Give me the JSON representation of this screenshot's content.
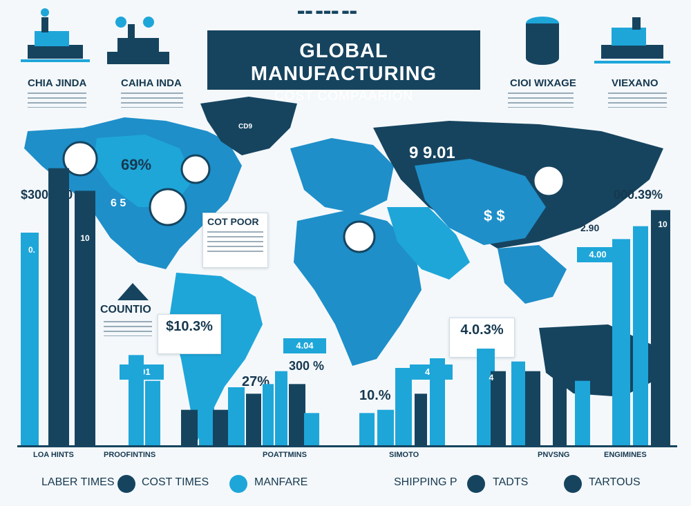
{
  "header": {
    "tag": "▬▬ ▬▬▬ ▬▬"
  },
  "title": {
    "line1": "GLOBAL MANUFACTURING",
    "line2": "COST COMPAARION"
  },
  "top_labels": [
    {
      "text": "CHIA JINDA"
    },
    {
      "text": "CAIHA INDA"
    },
    {
      "text": "CIOI WIXAGE"
    },
    {
      "text": "VIEXANO"
    }
  ],
  "map_texts": {
    "na_pct": "69%",
    "na_small": "6 5",
    "cost_poor": "COT POOR",
    "countio": "COUNTIO",
    "asia_nums": "9 9.01",
    "asia_side": "2.90",
    "greenland": "CD9"
  },
  "callouts": {
    "sa": "$10.3%",
    "af": "4.0.3%",
    "left_big": "$300.990",
    "right_big": "000.39%"
  },
  "pct_labels": {
    "p27": "27%",
    "p300": "300 %",
    "p10": "10.%"
  },
  "blue_tags": {
    "t1": "4.01",
    "t2": "4.04",
    "t3": "4.0",
    "t4": "4.00"
  },
  "bar_tags": {
    "b1": "0.",
    "b2": "10",
    "b3": "4",
    "b4": "10"
  },
  "categories_text": [
    "LOA HINTS",
    "PROOFINTINS",
    "POATTMINS",
    "SIMOTO",
    "PNVSNG",
    "ENGIMINES"
  ],
  "legend": [
    {
      "label": "LABER TIMES",
      "color": "#16445f"
    },
    {
      "label": "COST TIMES",
      "color": "#1ea6d9"
    },
    {
      "label": "MANFARE",
      "color": "#1ea6d9"
    },
    {
      "label": "SHIPPING P",
      "color": "#16445f"
    },
    {
      "label": "TADTS",
      "color": "#16445f"
    },
    {
      "label": "TARTOUS",
      "color": "#16445f"
    }
  ],
  "chart_data": {
    "type": "bar",
    "bars": [
      {
        "value": 330,
        "color": "#1ea6d9"
      },
      {
        "value": 430,
        "color": "#16445f"
      },
      {
        "value": 395,
        "color": "#16445f"
      },
      {
        "value": 140,
        "color": "#1ea6d9"
      },
      {
        "value": 100,
        "color": "#1ea6d9"
      },
      {
        "value": 55,
        "color": "#16445f"
      },
      {
        "value": 120,
        "color": "#1ea6d9"
      },
      {
        "value": 55,
        "color": "#16445f"
      },
      {
        "value": 90,
        "color": "#1ea6d9"
      },
      {
        "value": 80,
        "color": "#16445f"
      },
      {
        "value": 95,
        "color": "#1ea6d9"
      },
      {
        "value": 115,
        "color": "#1ea6d9"
      },
      {
        "value": 95,
        "color": "#16445f"
      },
      {
        "value": 50,
        "color": "#1ea6d9"
      },
      {
        "value": 50,
        "color": "#1ea6d9"
      },
      {
        "value": 55,
        "color": "#1ea6d9"
      },
      {
        "value": 120,
        "color": "#1ea6d9"
      },
      {
        "value": 80,
        "color": "#16445f"
      },
      {
        "value": 135,
        "color": "#1ea6d9"
      },
      {
        "value": 150,
        "color": "#1ea6d9"
      },
      {
        "value": 115,
        "color": "#16445f"
      },
      {
        "value": 130,
        "color": "#1ea6d9"
      },
      {
        "value": 115,
        "color": "#16445f"
      },
      {
        "value": 135,
        "color": "#16445f"
      },
      {
        "value": 100,
        "color": "#1ea6d9"
      },
      {
        "value": 320,
        "color": "#1ea6d9"
      },
      {
        "value": 340,
        "color": "#1ea6d9"
      },
      {
        "value": 365,
        "color": "#16445f"
      }
    ],
    "ylim": [
      0,
      450
    ]
  }
}
